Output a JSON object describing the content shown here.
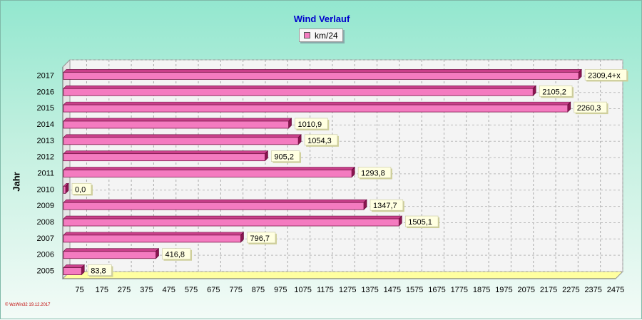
{
  "chart_data": {
    "type": "bar",
    "orientation": "horizontal",
    "title": "Wind Verlauf",
    "ylabel": "Jahr",
    "xlabel": "",
    "series": [
      {
        "name": "km/24",
        "color": "#f47bc0"
      }
    ],
    "categories": [
      "2017",
      "2016",
      "2015",
      "2014",
      "2013",
      "2012",
      "2011",
      "2010",
      "2009",
      "2008",
      "2007",
      "2006",
      "2005"
    ],
    "values": [
      2309.4,
      2105.2,
      2260.3,
      1010.9,
      1054.3,
      905.2,
      1293.8,
      0.0,
      1347.7,
      1505.1,
      796.7,
      416.8,
      83.8
    ],
    "value_labels": [
      "2309,4+x",
      "2105,2",
      "2260,3",
      "1010,9",
      "1054,3",
      "905,2",
      "1293,8",
      "0,0",
      "1347,7",
      "1505,1",
      "796,7",
      "416,8",
      "83,8"
    ],
    "xlim": [
      0,
      2475
    ],
    "xticks": [
      75,
      175,
      275,
      375,
      475,
      575,
      675,
      775,
      875,
      975,
      1075,
      1175,
      1275,
      1375,
      1475,
      1575,
      1675,
      1775,
      1875,
      1975,
      2075,
      2175,
      2275,
      2375,
      2475
    ],
    "grid": true,
    "legend_position": "top-center"
  },
  "footer": "© WzWin32  19.12.2017"
}
